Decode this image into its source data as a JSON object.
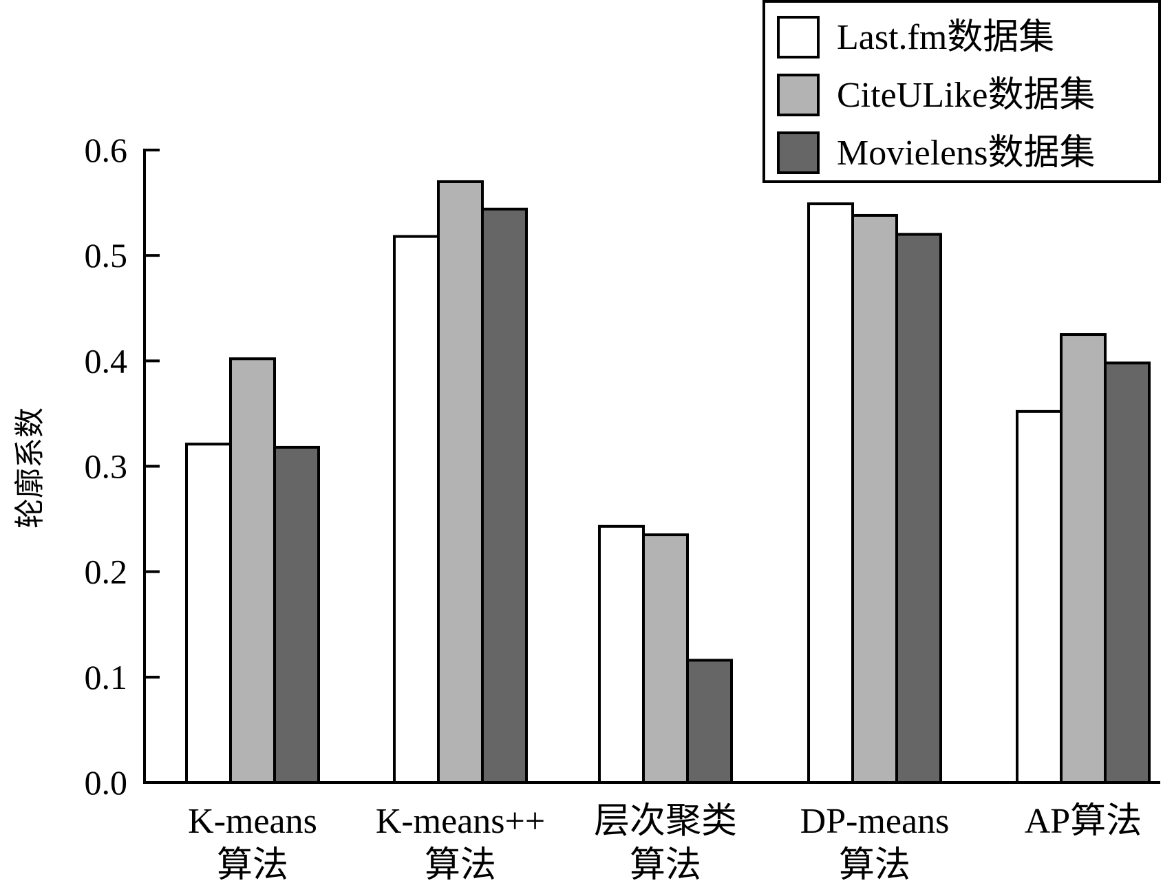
{
  "chart_data": {
    "type": "bar",
    "title": "",
    "xlabel": "",
    "ylabel": "轮廓系数",
    "ylim": [
      0,
      0.6
    ],
    "yticks": [
      "0.0",
      "0.1",
      "0.2",
      "0.3",
      "0.4",
      "0.5",
      "0.6"
    ],
    "grid": false,
    "legend_position": "top-right",
    "categories": [
      [
        "K-means",
        "算法"
      ],
      [
        "K-means++",
        "算法"
      ],
      [
        "层次聚类",
        "算法"
      ],
      [
        "DP-means",
        "算法"
      ],
      [
        "AP算法"
      ]
    ],
    "series": [
      {
        "name": "Last.fm数据集",
        "color": "#ffffff",
        "values": [
          0.321,
          0.518,
          0.243,
          0.549,
          0.352
        ]
      },
      {
        "name": "CiteULike数据集",
        "color": "#b3b3b3",
        "values": [
          0.402,
          0.57,
          0.235,
          0.538,
          0.425
        ]
      },
      {
        "name": "Movielens数据集",
        "color": "#666666",
        "values": [
          0.318,
          0.544,
          0.116,
          0.52,
          0.398
        ]
      }
    ]
  }
}
